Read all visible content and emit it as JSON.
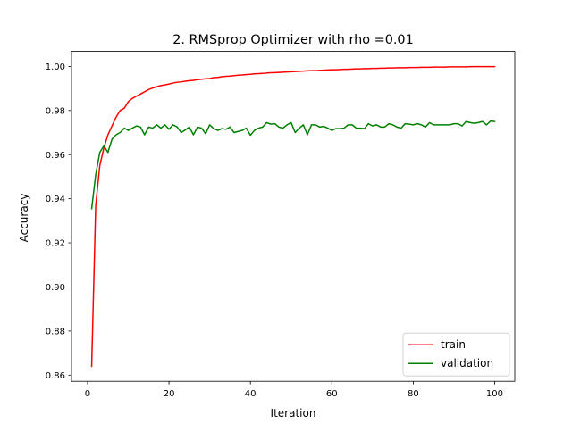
{
  "chart_data": {
    "type": "line",
    "title": "2. RMSprop Optimizer with rho =0.01",
    "xlabel": "Iteration",
    "ylabel": "Accuracy",
    "xlim": [
      -3.95,
      104.95
    ],
    "ylim": [
      0.8572,
      1.0068
    ],
    "xticks": [
      0,
      20,
      40,
      60,
      80,
      100
    ],
    "xtick_labels": [
      "0",
      "20",
      "40",
      "60",
      "80",
      "100"
    ],
    "yticks": [
      0.86,
      0.88,
      0.9,
      0.92,
      0.94,
      0.96,
      0.98,
      1.0
    ],
    "ytick_labels": [
      "0.86",
      "0.88",
      "0.90",
      "0.92",
      "0.94",
      "0.96",
      "0.98",
      "1.00"
    ],
    "grid": false,
    "legend_position": "lower-right",
    "series": [
      {
        "name": "train",
        "color": "#ff0000",
        "x": [
          1,
          2,
          3,
          4,
          5,
          6,
          7,
          8,
          9,
          10,
          11,
          12,
          13,
          14,
          15,
          16,
          17,
          18,
          19,
          20,
          21,
          22,
          23,
          24,
          25,
          26,
          27,
          28,
          29,
          30,
          31,
          32,
          33,
          34,
          35,
          36,
          37,
          38,
          39,
          40,
          41,
          42,
          43,
          44,
          45,
          46,
          47,
          48,
          49,
          50,
          51,
          52,
          53,
          54,
          55,
          56,
          57,
          58,
          59,
          60,
          61,
          62,
          63,
          64,
          65,
          66,
          67,
          68,
          69,
          70,
          71,
          72,
          73,
          74,
          75,
          76,
          77,
          78,
          79,
          80,
          81,
          82,
          83,
          84,
          85,
          86,
          87,
          88,
          89,
          90,
          91,
          92,
          93,
          94,
          95,
          96,
          97,
          98,
          99,
          100
        ],
        "values": [
          0.864,
          0.937,
          0.955,
          0.963,
          0.969,
          0.973,
          0.977,
          0.98,
          0.981,
          0.984,
          0.9855,
          0.9865,
          0.9875,
          0.9885,
          0.9895,
          0.9902,
          0.9908,
          0.9913,
          0.9916,
          0.992,
          0.9925,
          0.9928,
          0.993,
          0.9933,
          0.9935,
          0.9937,
          0.994,
          0.9942,
          0.9944,
          0.9945,
          0.9949,
          0.995,
          0.9953,
          0.9955,
          0.9956,
          0.9958,
          0.996,
          0.9961,
          0.9963,
          0.9964,
          0.9966,
          0.9967,
          0.9968,
          0.997,
          0.9971,
          0.9972,
          0.9973,
          0.9974,
          0.9975,
          0.9976,
          0.9977,
          0.9978,
          0.9979,
          0.998,
          0.9981,
          0.9981,
          0.9982,
          0.9983,
          0.9984,
          0.9985,
          0.9985,
          0.9986,
          0.9987,
          0.9987,
          0.9988,
          0.9989,
          0.9989,
          0.999,
          0.999,
          0.9991,
          0.9991,
          0.9992,
          0.9992,
          0.9993,
          0.9993,
          0.9994,
          0.9994,
          0.9994,
          0.9995,
          0.9995,
          0.9995,
          0.9996,
          0.9996,
          0.9996,
          0.9997,
          0.9997,
          0.9997,
          0.9997,
          0.9998,
          0.9998,
          0.9998,
          0.9998,
          0.9998,
          0.9999,
          0.9999,
          0.9999,
          0.9999,
          0.9999,
          0.9999,
          0.9999
        ]
      },
      {
        "name": "validation",
        "color": "#008000",
        "x": [
          1,
          2,
          3,
          4,
          5,
          6,
          7,
          8,
          9,
          10,
          11,
          12,
          13,
          14,
          15,
          16,
          17,
          18,
          19,
          20,
          21,
          22,
          23,
          24,
          25,
          26,
          27,
          28,
          29,
          30,
          31,
          32,
          33,
          34,
          35,
          36,
          37,
          38,
          39,
          40,
          41,
          42,
          43,
          44,
          45,
          46,
          47,
          48,
          49,
          50,
          51,
          52,
          53,
          54,
          55,
          56,
          57,
          58,
          59,
          60,
          61,
          62,
          63,
          64,
          65,
          66,
          67,
          68,
          69,
          70,
          71,
          72,
          73,
          74,
          75,
          76,
          77,
          78,
          79,
          80,
          81,
          82,
          83,
          84,
          85,
          86,
          87,
          88,
          89,
          90,
          91,
          92,
          93,
          94,
          95,
          96,
          97,
          98,
          99,
          100
        ],
        "values": [
          0.9355,
          0.951,
          0.961,
          0.964,
          0.961,
          0.967,
          0.969,
          0.97,
          0.972,
          0.971,
          0.972,
          0.973,
          0.9725,
          0.969,
          0.9725,
          0.972,
          0.9735,
          0.972,
          0.9735,
          0.9715,
          0.9735,
          0.9725,
          0.97,
          0.9712,
          0.9725,
          0.969,
          0.9725,
          0.972,
          0.9695,
          0.9735,
          0.9718,
          0.971,
          0.9718,
          0.9715,
          0.9725,
          0.97,
          0.9705,
          0.971,
          0.972,
          0.9688,
          0.971,
          0.972,
          0.9725,
          0.9745,
          0.9738,
          0.974,
          0.9725,
          0.972,
          0.9735,
          0.9745,
          0.97,
          0.972,
          0.9735,
          0.969,
          0.9735,
          0.9735,
          0.9725,
          0.9728,
          0.972,
          0.971,
          0.9718,
          0.9718,
          0.972,
          0.9735,
          0.9735,
          0.972,
          0.972,
          0.9718,
          0.974,
          0.973,
          0.9735,
          0.9725,
          0.9725,
          0.974,
          0.9735,
          0.9725,
          0.972,
          0.974,
          0.9738,
          0.9735,
          0.974,
          0.9735,
          0.9725,
          0.9745,
          0.9735,
          0.9735,
          0.9735,
          0.9735,
          0.9735,
          0.974,
          0.974,
          0.973,
          0.975,
          0.9745,
          0.9742,
          0.9745,
          0.975,
          0.9735,
          0.9752,
          0.975
        ]
      }
    ]
  }
}
